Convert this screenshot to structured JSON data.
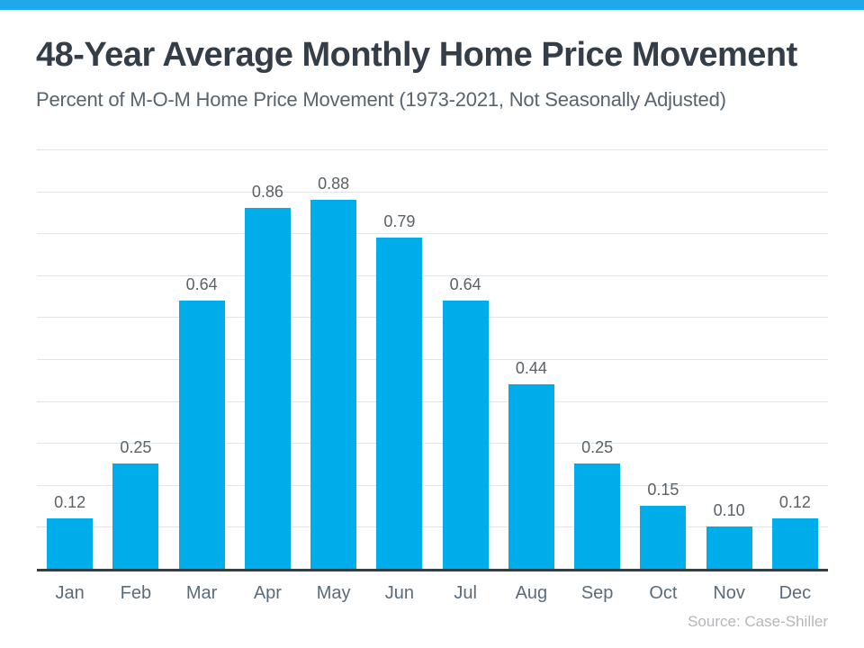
{
  "colors": {
    "top_accent_bar": "#1EA9EA",
    "bar_fill": "#00ADEB",
    "title_text": "#333E48",
    "subtitle_text": "#57646F",
    "axis_line": "#363D45",
    "grid_line": "#E0E5E8",
    "value_label_text": "#5A6167",
    "month_label_text": "#5A6B7B",
    "source_text": "#B3B7BB"
  },
  "chart_data": {
    "type": "bar",
    "title": "48-Year Average Monthly Home Price Movement",
    "subtitle": "Percent of M-O-M Home Price Movement (1973-2021, Not Seasonally Adjusted)",
    "categories": [
      "Jan",
      "Feb",
      "Mar",
      "Apr",
      "May",
      "Jun",
      "Jul",
      "Aug",
      "Sep",
      "Oct",
      "Nov",
      "Dec"
    ],
    "values": [
      0.12,
      0.25,
      0.64,
      0.86,
      0.88,
      0.79,
      0.64,
      0.44,
      0.25,
      0.15,
      0.1,
      0.12
    ],
    "value_labels": [
      "0.12",
      "0.25",
      "0.64",
      "0.86",
      "0.88",
      "0.79",
      "0.64",
      "0.44",
      "0.25",
      "0.15",
      "0.10",
      "0.12"
    ],
    "xlabel": "",
    "ylabel": "",
    "ylim": [
      0,
      1.0
    ],
    "grid_step": 0.1,
    "grid": true,
    "legend": false,
    "y_axis_tick_labels_visible": false,
    "source": "Source: Case-Shiller"
  }
}
